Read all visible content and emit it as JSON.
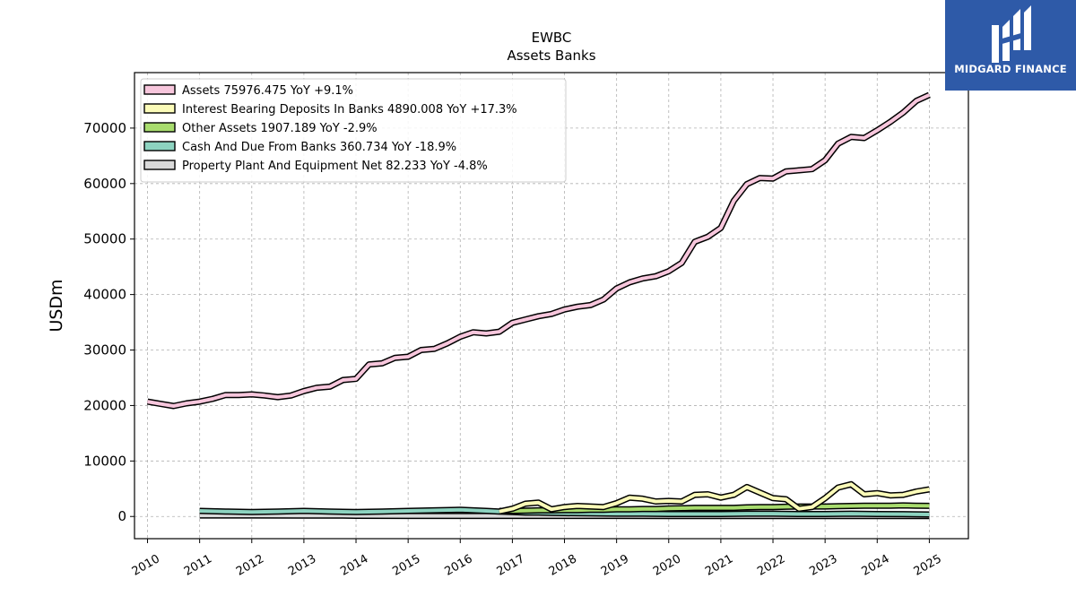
{
  "chart_data": {
    "type": "area",
    "title": "EWBC",
    "subtitle": "Assets Banks",
    "ylabel": "USDm",
    "xlabel": "",
    "ylim": [
      -4000,
      80000
    ],
    "xlim": [
      2009.75,
      2025.75
    ],
    "yticks": [
      0,
      10000,
      20000,
      30000,
      40000,
      50000,
      60000,
      70000
    ],
    "ytick_labels": [
      "0",
      "10000",
      "20000",
      "30000",
      "40000",
      "50000",
      "60000",
      "70000"
    ],
    "xticks": [
      2010,
      2011,
      2012,
      2013,
      2014,
      2015,
      2016,
      2017,
      2018,
      2019,
      2020,
      2021,
      2022,
      2023,
      2024,
      2025
    ],
    "xtick_labels": [
      "2010",
      "2011",
      "2012",
      "2013",
      "2014",
      "2015",
      "2016",
      "2017",
      "2018",
      "2019",
      "2020",
      "2021",
      "2022",
      "2023",
      "2024",
      "2025"
    ],
    "grid": true,
    "legend_position": "top-left",
    "series": [
      {
        "name": "Assets",
        "legend_label": "Assets  75976.475 YoY +9.1%",
        "color": "#f7c6dc",
        "x": [
          2010.0,
          2010.25,
          2010.5,
          2010.75,
          2011.0,
          2011.25,
          2011.5,
          2011.75,
          2012.0,
          2012.25,
          2012.5,
          2012.75,
          2013.0,
          2013.25,
          2013.5,
          2013.75,
          2014.0,
          2014.25,
          2014.5,
          2014.75,
          2015.0,
          2015.25,
          2015.5,
          2015.75,
          2016.0,
          2016.25,
          2016.5,
          2016.75,
          2017.0,
          2017.25,
          2017.5,
          2017.75,
          2018.0,
          2018.25,
          2018.5,
          2018.75,
          2019.0,
          2019.25,
          2019.5,
          2019.75,
          2020.0,
          2020.25,
          2020.5,
          2020.75,
          2021.0,
          2021.25,
          2021.5,
          2021.75,
          2022.0,
          2022.25,
          2022.5,
          2022.75,
          2023.0,
          2023.25,
          2023.5,
          2023.75,
          2024.0,
          2024.25,
          2024.5,
          2024.75,
          2025.0
        ],
        "values": [
          20700,
          20300,
          19900,
          20400,
          20700,
          21200,
          21900,
          21900,
          22000,
          21800,
          21500,
          21800,
          22600,
          23200,
          23400,
          24600,
          24800,
          27400,
          27600,
          28600,
          28800,
          30000,
          30200,
          31200,
          32400,
          33200,
          33000,
          33300,
          34900,
          35500,
          36100,
          36500,
          37300,
          37800,
          38100,
          39100,
          41100,
          42200,
          42900,
          43300,
          44200,
          45700,
          49500,
          50400,
          52000,
          56900,
          59900,
          61000,
          60900,
          62200,
          62400,
          62600,
          64200,
          67200,
          68400,
          68200,
          69600,
          71100,
          72800,
          74900,
          75976
        ]
      },
      {
        "name": "Interest Bearing Deposits In Banks",
        "legend_label": "Interest Bearing Deposits In Banks  4890.008 YoY +17.3%",
        "color": "#fbfbb8",
        "x": [
          2016.75,
          2017.0,
          2017.25,
          2017.5,
          2017.75,
          2018.0,
          2018.25,
          2018.5,
          2018.75,
          2019.0,
          2019.25,
          2019.5,
          2019.75,
          2020.0,
          2020.25,
          2020.5,
          2020.75,
          2021.0,
          2021.25,
          2021.5,
          2021.75,
          2022.0,
          2022.25,
          2022.5,
          2022.75,
          2023.0,
          2023.25,
          2023.5,
          2023.75,
          2024.0,
          2024.25,
          2024.5,
          2024.75,
          2025.0
        ],
        "values": [
          900,
          1400,
          2300,
          2500,
          1300,
          1700,
          1900,
          1800,
          1700,
          2400,
          3400,
          3200,
          2700,
          2800,
          2700,
          3900,
          4000,
          3400,
          3900,
          5300,
          4300,
          3300,
          3100,
          1400,
          1700,
          3300,
          5200,
          5800,
          4000,
          4200,
          3800,
          3900,
          4500,
          4890
        ]
      },
      {
        "name": "Other Assets",
        "legend_label": "Other Assets  1907.189 YoY -2.9%",
        "color": "#a8dc6e",
        "x": [
          2016.75,
          2017.0,
          2017.25,
          2017.5,
          2017.75,
          2018.0,
          2018.25,
          2018.5,
          2018.75,
          2019.0,
          2019.25,
          2019.5,
          2019.75,
          2020.0,
          2020.25,
          2020.5,
          2020.75,
          2021.0,
          2021.25,
          2021.5,
          2021.75,
          2022.0,
          2022.25,
          2022.5,
          2022.75,
          2023.0,
          2023.25,
          2023.5,
          2023.75,
          2024.0,
          2024.25,
          2024.5,
          2024.75,
          2025.0
        ],
        "values": [
          1000,
          1000,
          1050,
          1100,
          1100,
          1150,
          1150,
          1200,
          1200,
          1300,
          1300,
          1350,
          1350,
          1450,
          1500,
          1550,
          1550,
          1550,
          1550,
          1650,
          1700,
          1700,
          1750,
          1800,
          1800,
          1800,
          1850,
          1900,
          1950,
          1950,
          1950,
          2000,
          1950,
          1907
        ]
      },
      {
        "name": "Cash And Due From Banks",
        "legend_label": "Cash And Due From Banks  360.734 YoY -18.9%",
        "color": "#8dd3c0",
        "x": [
          2011.0,
          2011.5,
          2012.0,
          2012.5,
          2013.0,
          2013.5,
          2014.0,
          2014.5,
          2015.0,
          2015.5,
          2016.0,
          2016.25,
          2016.5,
          2016.75,
          2017.0,
          2017.25,
          2017.5,
          2017.75,
          2018.0,
          2018.5,
          2019.0,
          2019.5,
          2020.0,
          2020.5,
          2021.0,
          2021.5,
          2022.0,
          2022.5,
          2023.0,
          2023.5,
          2024.0,
          2024.5,
          2025.0
        ],
        "values": [
          1000,
          900,
          800,
          900,
          1000,
          900,
          800,
          900,
          1000,
          1100,
          1200,
          1100,
          1000,
          900,
          800,
          700,
          700,
          650,
          600,
          550,
          500,
          500,
          450,
          450,
          450,
          500,
          500,
          450,
          450,
          500,
          450,
          420,
          361
        ]
      },
      {
        "name": "Property Plant And Equipment Net",
        "legend_label": "Property Plant And Equipment Net  82.233 YoY -4.8%",
        "color": "#d9d9d9",
        "x": [
          2011.0,
          2012.0,
          2013.0,
          2013.75,
          2014.0,
          2015.0,
          2016.0,
          2017.0,
          2018.0,
          2019.0,
          2020.0,
          2021.0,
          2022.0,
          2023.0,
          2024.0,
          2025.0
        ],
        "values": [
          180,
          180,
          170,
          150,
          120,
          110,
          100,
          100,
          95,
          95,
          90,
          90,
          88,
          86,
          85,
          82
        ]
      }
    ]
  },
  "branding": {
    "logo_text": "MIDGARD FINANCE",
    "logo_color": "#2e5aa8"
  }
}
